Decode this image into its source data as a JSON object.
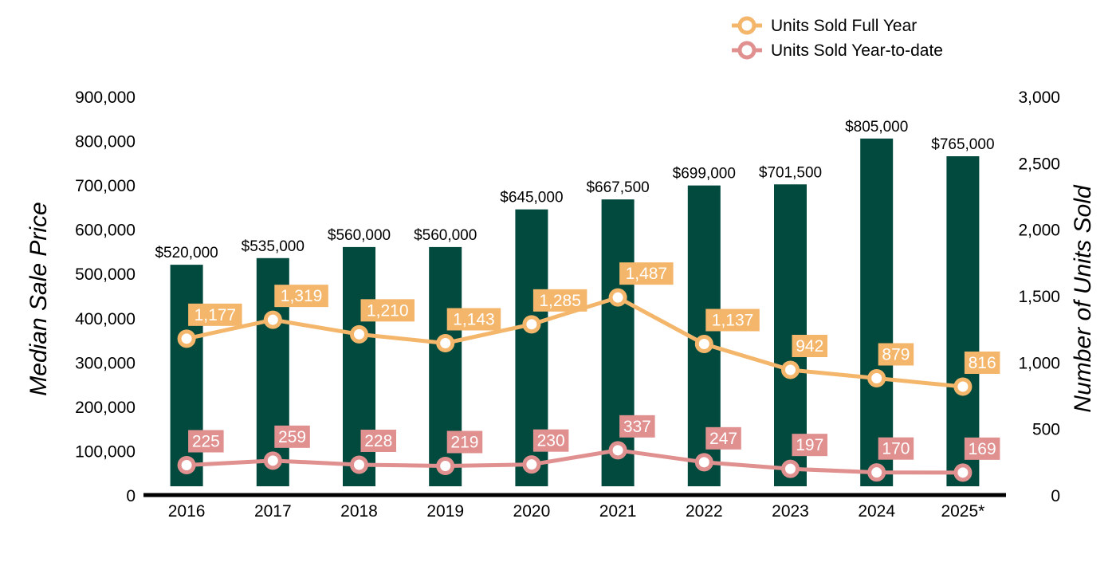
{
  "chart_data": {
    "type": "bar",
    "categories": [
      "2016",
      "2017",
      "2018",
      "2019",
      "2020",
      "2021",
      "2022",
      "2023",
      "2024",
      "2025*"
    ],
    "series": [
      {
        "name": "",
        "chart": "bar",
        "axis": "left",
        "values": [
          520000,
          535000,
          560000,
          560000,
          645000,
          667500,
          699000,
          701500,
          805000,
          765000
        ],
        "labels": [
          "$520,000",
          "$535,000",
          "$560,000",
          "$560,000",
          "$645,000",
          "$667,500",
          "$699,000",
          "$701,500",
          "$805,000",
          "$765,000"
        ],
        "color": "#034a3e"
      },
      {
        "name": "Units Sold Full Year",
        "chart": "line",
        "axis": "right",
        "values": [
          1177,
          1319,
          1210,
          1143,
          1285,
          1487,
          1137,
          942,
          879,
          816
        ],
        "labels": [
          "1,177",
          "1,319",
          "1,210",
          "1,143",
          "1,285",
          "1,487",
          "1,137",
          "942",
          "879",
          "816"
        ],
        "color": "#f4b66b"
      },
      {
        "name": "Units Sold Year-to-date",
        "chart": "line",
        "axis": "right",
        "values": [
          225,
          259,
          228,
          219,
          230,
          337,
          247,
          197,
          170,
          169
        ],
        "labels": [
          "225",
          "259",
          "228",
          "219",
          "230",
          "337",
          "247",
          "197",
          "170",
          "169"
        ],
        "color": "#e0908f"
      }
    ],
    "y_left": {
      "label": "Median Sale Price",
      "range": [
        0,
        900000
      ],
      "ticks": [
        0,
        100000,
        200000,
        300000,
        400000,
        500000,
        600000,
        700000,
        800000,
        900000
      ],
      "tick_labels": [
        "0",
        "100,000",
        "200,000",
        "300,000",
        "400,000",
        "500,000",
        "600,000",
        "700,000",
        "800,000",
        "900,000"
      ]
    },
    "y_right": {
      "label": "Number of Units Sold",
      "range": [
        0,
        3000
      ],
      "ticks": [
        0,
        500,
        1000,
        1500,
        2000,
        2500,
        3000
      ],
      "tick_labels": [
        "0",
        "500",
        "1,000",
        "1,500",
        "2,000",
        "2,500",
        "3,000"
      ]
    },
    "grid": false,
    "legend": {
      "position": "top-right",
      "entries": [
        "Units Sold Full Year",
        "Units Sold Year-to-date"
      ]
    }
  }
}
